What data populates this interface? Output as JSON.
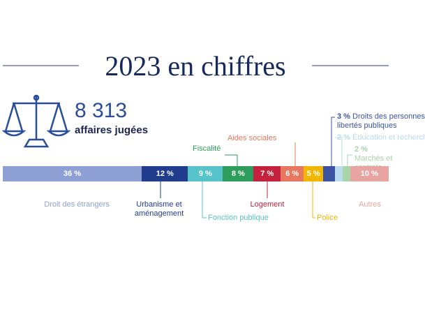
{
  "chart_data": {
    "type": "stacked-bar",
    "title": "2023 en chiffres",
    "total": {
      "value": 8313,
      "label": "8 313"
    },
    "total_caption": "affaires jugées",
    "categories": [
      "Droit des étrangers",
      "Urbanisme et aménagement",
      "Fonction publique",
      "Fiscalité",
      "Logement",
      "Aides sociales",
      "Police",
      "Droits des personnes et libertés publiques",
      "Éducation et recherche",
      "Marchés et contrats",
      "Autres"
    ],
    "values": [
      36,
      12,
      9,
      8,
      7,
      6,
      5,
      3,
      2,
      2,
      10
    ],
    "value_labels": [
      "36 %",
      "12 %",
      "9 %",
      "8 %",
      "7 %",
      "6 %",
      "5 %",
      "3 %",
      "2 %",
      "2 %",
      "10 %"
    ],
    "colors": [
      "#8d9fd3",
      "#1f3d8c",
      "#55c3c9",
      "#2e9d5c",
      "#c4213f",
      "#e8775f",
      "#f1b600",
      "#3c53a2",
      "#b9dbeb",
      "#a9d4a8",
      "#e8a4a1"
    ]
  }
}
